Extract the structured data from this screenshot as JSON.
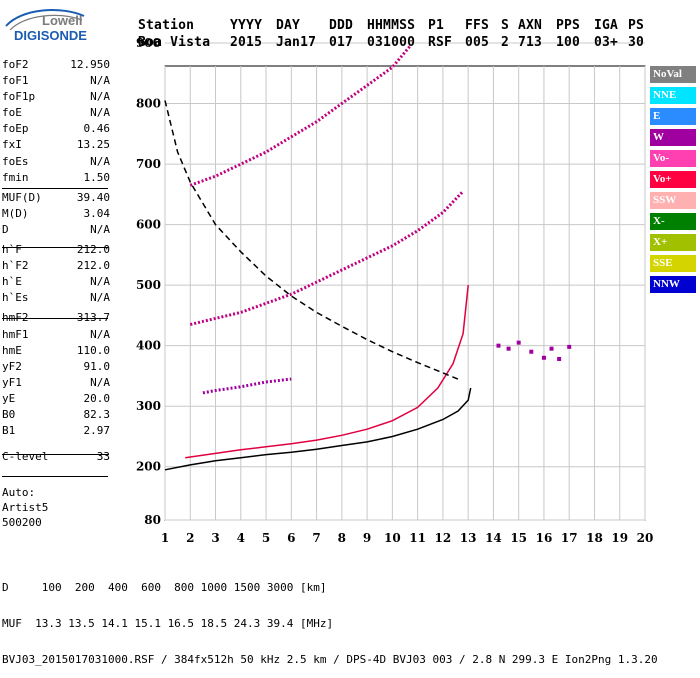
{
  "logo": {
    "line1": "Lowell",
    "line2": "DIGISONDE"
  },
  "header": {
    "labels": [
      "Station",
      "YYYY",
      "DAY",
      "DDD",
      "HHMMSS",
      "P1",
      "FFS",
      "S",
      "AXN",
      "PPS",
      "IGA",
      "PS"
    ],
    "values": [
      "Boa Vista",
      "2015",
      "Jan17",
      "017",
      "031000",
      "RSF",
      "005",
      "2",
      "713",
      "100",
      "03+",
      "30"
    ]
  },
  "params": [
    {
      "label": "foF2",
      "value": "12.950"
    },
    {
      "label": "foF1",
      "value": "N/A"
    },
    {
      "label": "foF1p",
      "value": "N/A"
    },
    {
      "label": "foE",
      "value": "N/A"
    },
    {
      "label": "foEp",
      "value": "0.46"
    },
    {
      "label": "fxI",
      "value": "13.25"
    },
    {
      "label": "foEs",
      "value": "N/A"
    },
    {
      "label": "fmin",
      "value": "1.50"
    },
    {
      "label": "MUF(D)",
      "value": "39.40"
    },
    {
      "label": "M(D)",
      "value": "3.04"
    },
    {
      "label": "D",
      "value": "N/A"
    },
    {
      "label": "h`F",
      "value": "212.0"
    },
    {
      "label": "h`F2",
      "value": "212.0"
    },
    {
      "label": "h`E",
      "value": "N/A"
    },
    {
      "label": "h`Es",
      "value": "N/A"
    },
    {
      "label": "hmF2",
      "value": "313.7"
    },
    {
      "label": "hmF1",
      "value": "N/A"
    },
    {
      "label": "hmE",
      "value": "110.0"
    },
    {
      "label": "yF2",
      "value": "91.0"
    },
    {
      "label": "yF1",
      "value": "N/A"
    },
    {
      "label": "yE",
      "value": "20.0"
    },
    {
      "label": "B0",
      "value": "82.3"
    },
    {
      "label": "B1",
      "value": "2.97"
    },
    {
      "label": "C-level",
      "value": "33"
    }
  ],
  "auto": {
    "line1": "Auto:",
    "line2": "Artist5",
    "line3": "500200"
  },
  "legend": [
    {
      "label": "NoVal",
      "color": "#808080"
    },
    {
      "label": "NNE",
      "color": "#00e5ff"
    },
    {
      "label": "E",
      "color": "#2b8cff"
    },
    {
      "label": "W",
      "color": "#a000a0"
    },
    {
      "label": "Vo-",
      "color": "#ff40b0"
    },
    {
      "label": "Vo+",
      "color": "#ff0040"
    },
    {
      "label": "SSW",
      "color": "#ffb0b0"
    },
    {
      "label": "X-",
      "color": "#008000"
    },
    {
      "label": "X+",
      "color": "#a0c000"
    },
    {
      "label": "SSE",
      "color": "#d4d400"
    },
    {
      "label": "NNW",
      "color": "#0000d0"
    }
  ],
  "footer": {
    "line1": "D     100  200  400  600  800 1000 1500 3000 [km]",
    "line2": "MUF  13.3 13.5 14.1 15.1 16.5 18.5 24.3 39.4 [MHz]",
    "line3": "BVJ03_2015017031000.RSF / 384fx512h 50 kHz 2.5 km / DPS-4D BVJ03 003 / 2.8 N 299.3 E Ion2Png 1.3.20"
  },
  "chart_data": {
    "type": "scatter",
    "title": "",
    "xlabel": "",
    "ylabel": "",
    "x_ticks": [
      1,
      2,
      3,
      4,
      5,
      6,
      7,
      8,
      9,
      10,
      11,
      12,
      13,
      14,
      15,
      16,
      17,
      18,
      19,
      20
    ],
    "y_ticks": [
      80,
      200,
      300,
      400,
      500,
      600,
      700,
      800,
      900
    ],
    "xlim": [
      1,
      20
    ],
    "ylim": [
      80,
      900
    ],
    "grid": true,
    "legend_position": "right",
    "series": [
      {
        "name": "",
        "color": "#e00040",
        "style": "solid",
        "points": [
          [
            1.8,
            215
          ],
          [
            3,
            222
          ],
          [
            4,
            228
          ],
          [
            5,
            233
          ],
          [
            6,
            238
          ],
          [
            7,
            244
          ],
          [
            8,
            252
          ],
          [
            9,
            262
          ],
          [
            10,
            276
          ],
          [
            11,
            298
          ],
          [
            11.8,
            330
          ],
          [
            12.4,
            370
          ],
          [
            12.8,
            420
          ],
          [
            13,
            500
          ]
        ]
      },
      {
        "name": "",
        "color": "#000000",
        "style": "solid",
        "points": [
          [
            1.0,
            193
          ],
          [
            2,
            203
          ],
          [
            3,
            210
          ],
          [
            4,
            215
          ],
          [
            5,
            220
          ],
          [
            6,
            224
          ],
          [
            7,
            229
          ],
          [
            8,
            235
          ],
          [
            9,
            241
          ],
          [
            10,
            250
          ],
          [
            11,
            262
          ],
          [
            12,
            278
          ],
          [
            12.6,
            292
          ],
          [
            13,
            310
          ],
          [
            13.1,
            330
          ]
        ]
      },
      {
        "name": "",
        "color": "#000000",
        "style": "dashed",
        "points": [
          [
            1.0,
            805
          ],
          [
            1.5,
            720
          ],
          [
            2,
            670
          ],
          [
            3,
            600
          ],
          [
            4,
            555
          ],
          [
            5,
            515
          ],
          [
            6,
            482
          ],
          [
            7,
            455
          ],
          [
            8,
            432
          ],
          [
            9,
            410
          ],
          [
            10,
            390
          ],
          [
            11,
            372
          ],
          [
            12,
            355
          ],
          [
            12.7,
            343
          ]
        ]
      },
      {
        "name": "",
        "color": "#c0007f",
        "style": "dotted",
        "points": [
          [
            2,
            435
          ],
          [
            3,
            445
          ],
          [
            4,
            455
          ],
          [
            5,
            470
          ],
          [
            6,
            485
          ],
          [
            7,
            505
          ],
          [
            8,
            525
          ],
          [
            9,
            545
          ],
          [
            10,
            565
          ],
          [
            11,
            590
          ],
          [
            12,
            620
          ],
          [
            12.8,
            655
          ]
        ]
      },
      {
        "name": "",
        "color": "#c0007f",
        "style": "dotted",
        "points": [
          [
            2,
            665
          ],
          [
            3,
            680
          ],
          [
            4,
            700
          ],
          [
            5,
            720
          ],
          [
            6,
            745
          ],
          [
            7,
            770
          ],
          [
            8,
            800
          ],
          [
            9,
            830
          ],
          [
            10,
            860
          ],
          [
            10.7,
            895
          ]
        ]
      },
      {
        "name": "",
        "color": "#a000a0",
        "style": "dotted",
        "points": [
          [
            2.5,
            322
          ],
          [
            3,
            326
          ],
          [
            4,
            332
          ],
          [
            5,
            340
          ],
          [
            6,
            345
          ]
        ]
      },
      {
        "name": "",
        "color": "#a000a0",
        "style": "scatter",
        "points": [
          [
            14.2,
            400
          ],
          [
            14.6,
            395
          ],
          [
            15,
            405
          ],
          [
            15.5,
            390
          ],
          [
            16,
            380
          ],
          [
            16.3,
            395
          ],
          [
            16.6,
            378
          ],
          [
            17,
            398
          ]
        ]
      }
    ]
  }
}
